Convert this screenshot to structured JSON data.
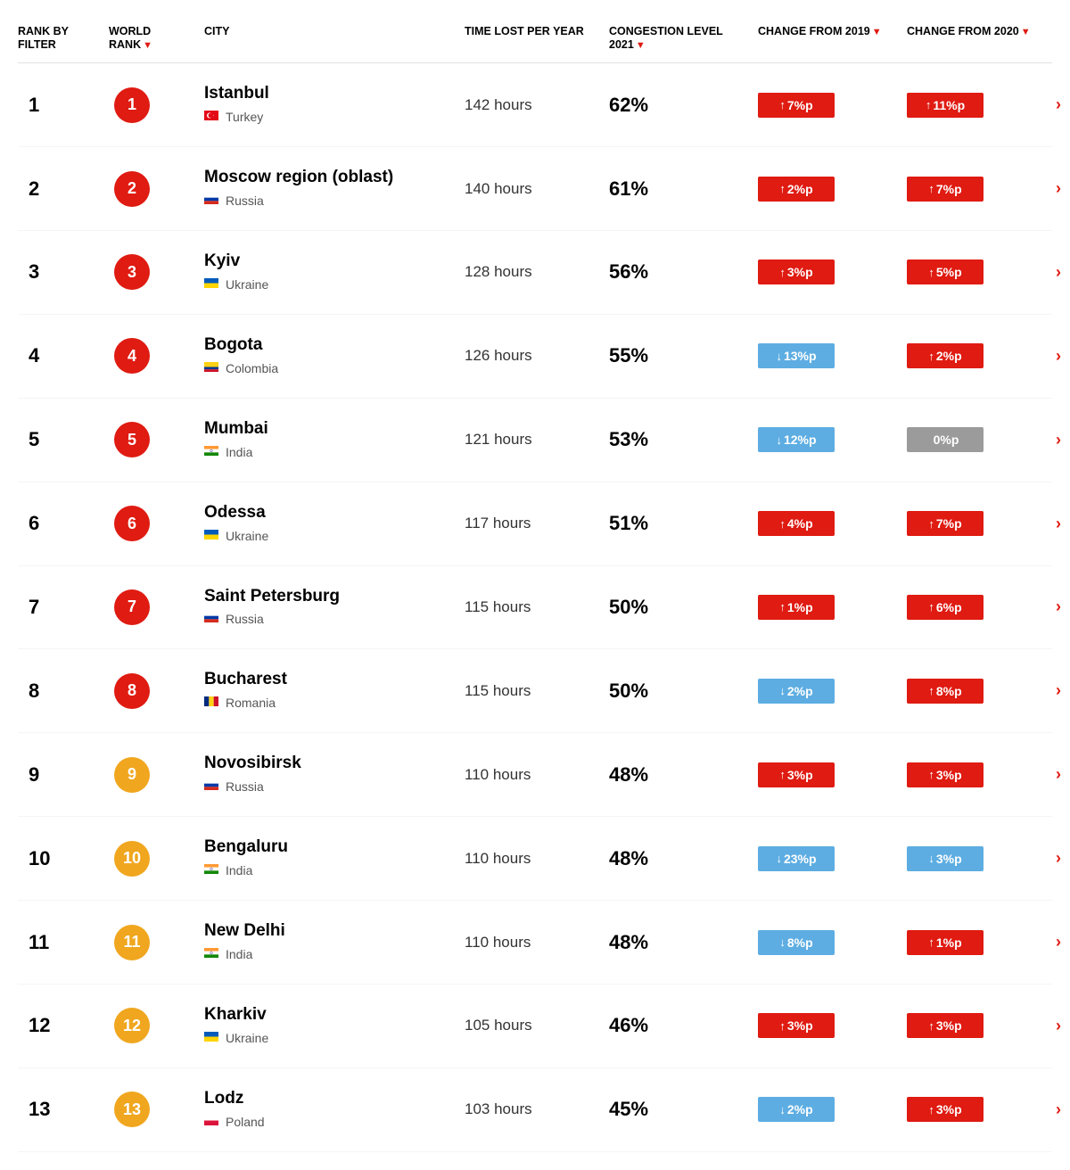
{
  "colors": {
    "badge_top8": "#df1b12",
    "badge_rest": "#f0a61e",
    "change_up": "#df1b12",
    "change_down": "#5dade2",
    "change_zero": "#9b9b9b",
    "sort_arrow": "#df1b12",
    "chevron": "#df1b12"
  },
  "headers": {
    "rank_filter": "RANK BY FILTER",
    "world_rank": "WORLD RANK",
    "city": "CITY",
    "time_lost": "TIME LOST PER YEAR",
    "congestion": "CONGESTION LEVEL 2021",
    "change2019": "CHANGE FROM 2019",
    "change2020": "CHANGE FROM 2020"
  },
  "sorted_columns": [
    "world_rank",
    "congestion",
    "change2019",
    "change2020"
  ],
  "flags": {
    "Turkey": {
      "type": "tr"
    },
    "Russia": {
      "type": "ru"
    },
    "Ukraine": {
      "type": "ua"
    },
    "Colombia": {
      "type": "co"
    },
    "India": {
      "type": "in"
    },
    "Romania": {
      "type": "ro"
    },
    "Poland": {
      "type": "pl"
    }
  },
  "rows": [
    {
      "rank": 1,
      "world_rank": 1,
      "city": "Istanbul",
      "country": "Turkey",
      "time_lost": "142 hours",
      "congestion": "62%",
      "c2019": {
        "dir": "up",
        "text": "7%p"
      },
      "c2020": {
        "dir": "up",
        "text": "11%p"
      }
    },
    {
      "rank": 2,
      "world_rank": 2,
      "city": "Moscow region (oblast)",
      "country": "Russia",
      "time_lost": "140 hours",
      "congestion": "61%",
      "c2019": {
        "dir": "up",
        "text": "2%p"
      },
      "c2020": {
        "dir": "up",
        "text": "7%p"
      }
    },
    {
      "rank": 3,
      "world_rank": 3,
      "city": "Kyiv",
      "country": "Ukraine",
      "time_lost": "128 hours",
      "congestion": "56%",
      "c2019": {
        "dir": "up",
        "text": "3%p"
      },
      "c2020": {
        "dir": "up",
        "text": "5%p"
      }
    },
    {
      "rank": 4,
      "world_rank": 4,
      "city": "Bogota",
      "country": "Colombia",
      "time_lost": "126 hours",
      "congestion": "55%",
      "c2019": {
        "dir": "down",
        "text": "13%p"
      },
      "c2020": {
        "dir": "up",
        "text": "2%p"
      }
    },
    {
      "rank": 5,
      "world_rank": 5,
      "city": "Mumbai",
      "country": "India",
      "time_lost": "121 hours",
      "congestion": "53%",
      "c2019": {
        "dir": "down",
        "text": "12%p"
      },
      "c2020": {
        "dir": "zero",
        "text": "0%p"
      }
    },
    {
      "rank": 6,
      "world_rank": 6,
      "city": "Odessa",
      "country": "Ukraine",
      "time_lost": "117 hours",
      "congestion": "51%",
      "c2019": {
        "dir": "up",
        "text": "4%p"
      },
      "c2020": {
        "dir": "up",
        "text": "7%p"
      }
    },
    {
      "rank": 7,
      "world_rank": 7,
      "city": "Saint Petersburg",
      "country": "Russia",
      "time_lost": "115 hours",
      "congestion": "50%",
      "c2019": {
        "dir": "up",
        "text": "1%p"
      },
      "c2020": {
        "dir": "up",
        "text": "6%p"
      }
    },
    {
      "rank": 8,
      "world_rank": 8,
      "city": "Bucharest",
      "country": "Romania",
      "time_lost": "115 hours",
      "congestion": "50%",
      "c2019": {
        "dir": "down",
        "text": "2%p"
      },
      "c2020": {
        "dir": "up",
        "text": "8%p"
      }
    },
    {
      "rank": 9,
      "world_rank": 9,
      "city": "Novosibirsk",
      "country": "Russia",
      "time_lost": "110 hours",
      "congestion": "48%",
      "c2019": {
        "dir": "up",
        "text": "3%p"
      },
      "c2020": {
        "dir": "up",
        "text": "3%p"
      }
    },
    {
      "rank": 10,
      "world_rank": 10,
      "city": "Bengaluru",
      "country": "India",
      "time_lost": "110 hours",
      "congestion": "48%",
      "c2019": {
        "dir": "down",
        "text": "23%p"
      },
      "c2020": {
        "dir": "down",
        "text": "3%p"
      }
    },
    {
      "rank": 11,
      "world_rank": 11,
      "city": "New Delhi",
      "country": "India",
      "time_lost": "110 hours",
      "congestion": "48%",
      "c2019": {
        "dir": "down",
        "text": "8%p"
      },
      "c2020": {
        "dir": "up",
        "text": "1%p"
      }
    },
    {
      "rank": 12,
      "world_rank": 12,
      "city": "Kharkiv",
      "country": "Ukraine",
      "time_lost": "105 hours",
      "congestion": "46%",
      "c2019": {
        "dir": "up",
        "text": "3%p"
      },
      "c2020": {
        "dir": "up",
        "text": "3%p"
      }
    },
    {
      "rank": 13,
      "world_rank": 13,
      "city": "Lodz",
      "country": "Poland",
      "time_lost": "103 hours",
      "congestion": "45%",
      "c2019": {
        "dir": "down",
        "text": "2%p"
      },
      "c2020": {
        "dir": "up",
        "text": "3%p"
      }
    }
  ]
}
